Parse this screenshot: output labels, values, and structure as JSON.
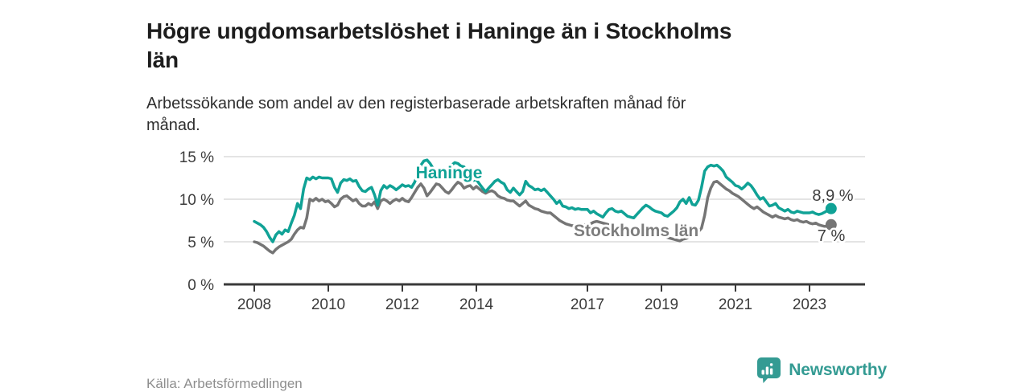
{
  "header": {
    "title": "Högre ungdomsarbetslöshet i Haninge än i Stockholms län",
    "subtitle": "Arbetssökande som andel av den registerbaserade arbetskraften månad för månad."
  },
  "footer": {
    "source": "Källa: Arbetsförmedlingen",
    "brand": "Newsworthy",
    "brand_icon": "bar-chart-bubble-icon"
  },
  "colors": {
    "haninge": "#10a296",
    "stockholm": "#757575",
    "stockholm_label": "#7d7d7d",
    "axis": "#3a3a3a",
    "grid": "#dcdcdc",
    "tick_text": "#3c3c3c",
    "value_text": "#3c3c3c",
    "brand": "#349b93"
  },
  "chart_data": {
    "type": "line",
    "title": "Högre ungdomsarbetslöshet i Haninge än i Stockholms län",
    "subtitle": "Arbetssökande som andel av den registerbaserade arbetskraften månad för månad.",
    "x_start_year": 2008,
    "x_interval": "monthly",
    "x_end": "2023-08",
    "ylim": [
      0,
      15.5
    ],
    "grid": true,
    "y_ticks": [
      {
        "value": 0,
        "label": "0 %"
      },
      {
        "value": 5,
        "label": "5 %"
      },
      {
        "value": 10,
        "label": "10 %"
      },
      {
        "value": 15,
        "label": "15 %"
      }
    ],
    "x_ticks": [
      {
        "year": 2008,
        "label": "2008"
      },
      {
        "year": 2010,
        "label": "2010"
      },
      {
        "year": 2012,
        "label": "2012"
      },
      {
        "year": 2014,
        "label": "2014"
      },
      {
        "year": 2017,
        "label": "2017"
      },
      {
        "year": 2019,
        "label": "2019"
      },
      {
        "year": 2021,
        "label": "2021"
      },
      {
        "year": 2023,
        "label": "2023"
      }
    ],
    "series": [
      {
        "name": "Haninge",
        "color": "#10a296",
        "end_label": "8,9 %",
        "end_value": 8.9,
        "values": [
          7.4,
          7.2,
          7.0,
          6.7,
          6.2,
          5.5,
          5.0,
          5.8,
          6.2,
          5.9,
          6.4,
          6.2,
          7.2,
          8.1,
          9.5,
          8.9,
          11.2,
          12.5,
          12.3,
          12.6,
          12.4,
          12.6,
          12.5,
          12.5,
          12.5,
          12.4,
          11.4,
          10.8,
          11.9,
          12.3,
          12.2,
          12.4,
          12.1,
          12.2,
          11.5,
          11.0,
          10.9,
          11.2,
          11.4,
          10.5,
          9.3,
          11.0,
          11.6,
          11.3,
          11.6,
          11.4,
          11.1,
          11.4,
          11.7,
          11.5,
          11.6,
          11.4,
          12.0,
          13.0,
          14.0,
          14.5,
          14.6,
          14.2,
          13.6,
          13.2,
          13.0,
          12.8,
          13.2,
          13.6,
          14.0,
          14.3,
          14.2,
          13.9,
          13.8,
          13.2,
          12.6,
          12.2,
          12.3,
          11.8,
          11.3,
          10.9,
          11.3,
          11.7,
          12.1,
          12.3,
          12.0,
          11.8,
          11.1,
          10.8,
          11.3,
          10.9,
          10.5,
          10.9,
          12.1,
          11.6,
          11.4,
          11.1,
          11.2,
          11.0,
          11.2,
          10.8,
          10.4,
          10.0,
          9.5,
          9.8,
          9.2,
          9.1,
          8.9,
          9.0,
          8.8,
          8.9,
          8.8,
          8.8,
          8.8,
          8.4,
          8.6,
          8.3,
          8.1,
          7.9,
          8.4,
          8.8,
          8.9,
          8.6,
          8.5,
          8.6,
          8.3,
          8.0,
          7.9,
          7.8,
          8.2,
          8.6,
          9.0,
          9.3,
          9.1,
          8.8,
          8.6,
          8.5,
          8.4,
          8.1,
          8.0,
          8.3,
          8.6,
          9.0,
          9.7,
          10.0,
          9.5,
          10.2,
          9.4,
          9.3,
          9.9,
          11.4,
          13.3,
          13.8,
          14.0,
          13.9,
          14.0,
          13.7,
          13.3,
          12.6,
          12.3,
          12.0,
          11.6,
          11.5,
          11.2,
          11.5,
          11.9,
          11.6,
          11.1,
          10.5,
          10.0,
          10.2,
          9.7,
          9.2,
          9.3,
          9.5,
          9.0,
          8.8,
          8.6,
          8.8,
          8.5,
          8.4,
          8.6,
          8.5,
          8.4,
          8.4,
          8.4,
          8.5,
          8.3,
          8.2,
          8.3,
          8.5,
          8.7,
          8.9
        ]
      },
      {
        "name": "Stockholms län",
        "color": "#757575",
        "end_label": "7 %",
        "end_value": 7.0,
        "values": [
          5.0,
          4.9,
          4.7,
          4.5,
          4.2,
          3.9,
          3.7,
          4.1,
          4.4,
          4.6,
          4.8,
          5.0,
          5.3,
          5.9,
          6.4,
          6.7,
          6.6,
          7.8,
          10.0,
          9.8,
          10.1,
          9.8,
          10.0,
          9.7,
          9.8,
          9.5,
          9.1,
          9.3,
          10.0,
          10.3,
          10.4,
          10.1,
          9.8,
          10.0,
          9.5,
          9.2,
          9.2,
          9.5,
          9.3,
          9.7,
          8.9,
          9.8,
          10.0,
          9.8,
          9.5,
          9.8,
          10.0,
          9.8,
          10.1,
          9.8,
          9.7,
          10.2,
          10.8,
          11.4,
          11.8,
          11.3,
          10.4,
          10.8,
          11.3,
          11.8,
          11.7,
          11.3,
          10.9,
          10.7,
          11.1,
          11.6,
          12.0,
          11.8,
          11.3,
          11.5,
          11.6,
          11.2,
          11.5,
          11.2,
          10.9,
          10.7,
          10.9,
          11.0,
          10.8,
          10.4,
          10.2,
          10.1,
          9.9,
          9.8,
          9.8,
          9.5,
          9.2,
          9.5,
          9.8,
          9.3,
          9.1,
          8.9,
          8.8,
          8.6,
          8.5,
          8.4,
          8.4,
          8.1,
          7.8,
          7.5,
          7.3,
          7.1,
          7.0,
          6.9,
          6.9,
          7.0,
          7.0,
          7.0,
          7.0,
          7.1,
          7.3,
          7.4,
          7.3,
          7.2,
          7.1,
          7.0,
          6.9,
          6.8,
          6.7,
          6.6,
          6.5,
          6.4,
          6.3,
          6.2,
          6.2,
          6.1,
          6.0,
          5.9,
          5.9,
          5.8,
          5.8,
          5.7,
          5.7,
          5.6,
          5.5,
          5.4,
          5.3,
          5.2,
          5.1,
          5.3,
          5.4,
          5.6,
          5.8,
          6.0,
          6.2,
          6.6,
          8.1,
          10.2,
          11.3,
          12.0,
          12.1,
          11.8,
          11.5,
          11.2,
          11.0,
          10.7,
          10.5,
          10.3,
          10.0,
          9.7,
          9.4,
          9.1,
          8.9,
          9.1,
          8.8,
          8.5,
          8.3,
          8.1,
          7.9,
          8.1,
          7.9,
          7.8,
          7.7,
          7.8,
          7.6,
          7.5,
          7.6,
          7.4,
          7.3,
          7.4,
          7.2,
          7.1,
          7.2,
          7.0,
          6.9,
          6.8,
          6.9,
          7.0
        ]
      }
    ]
  }
}
